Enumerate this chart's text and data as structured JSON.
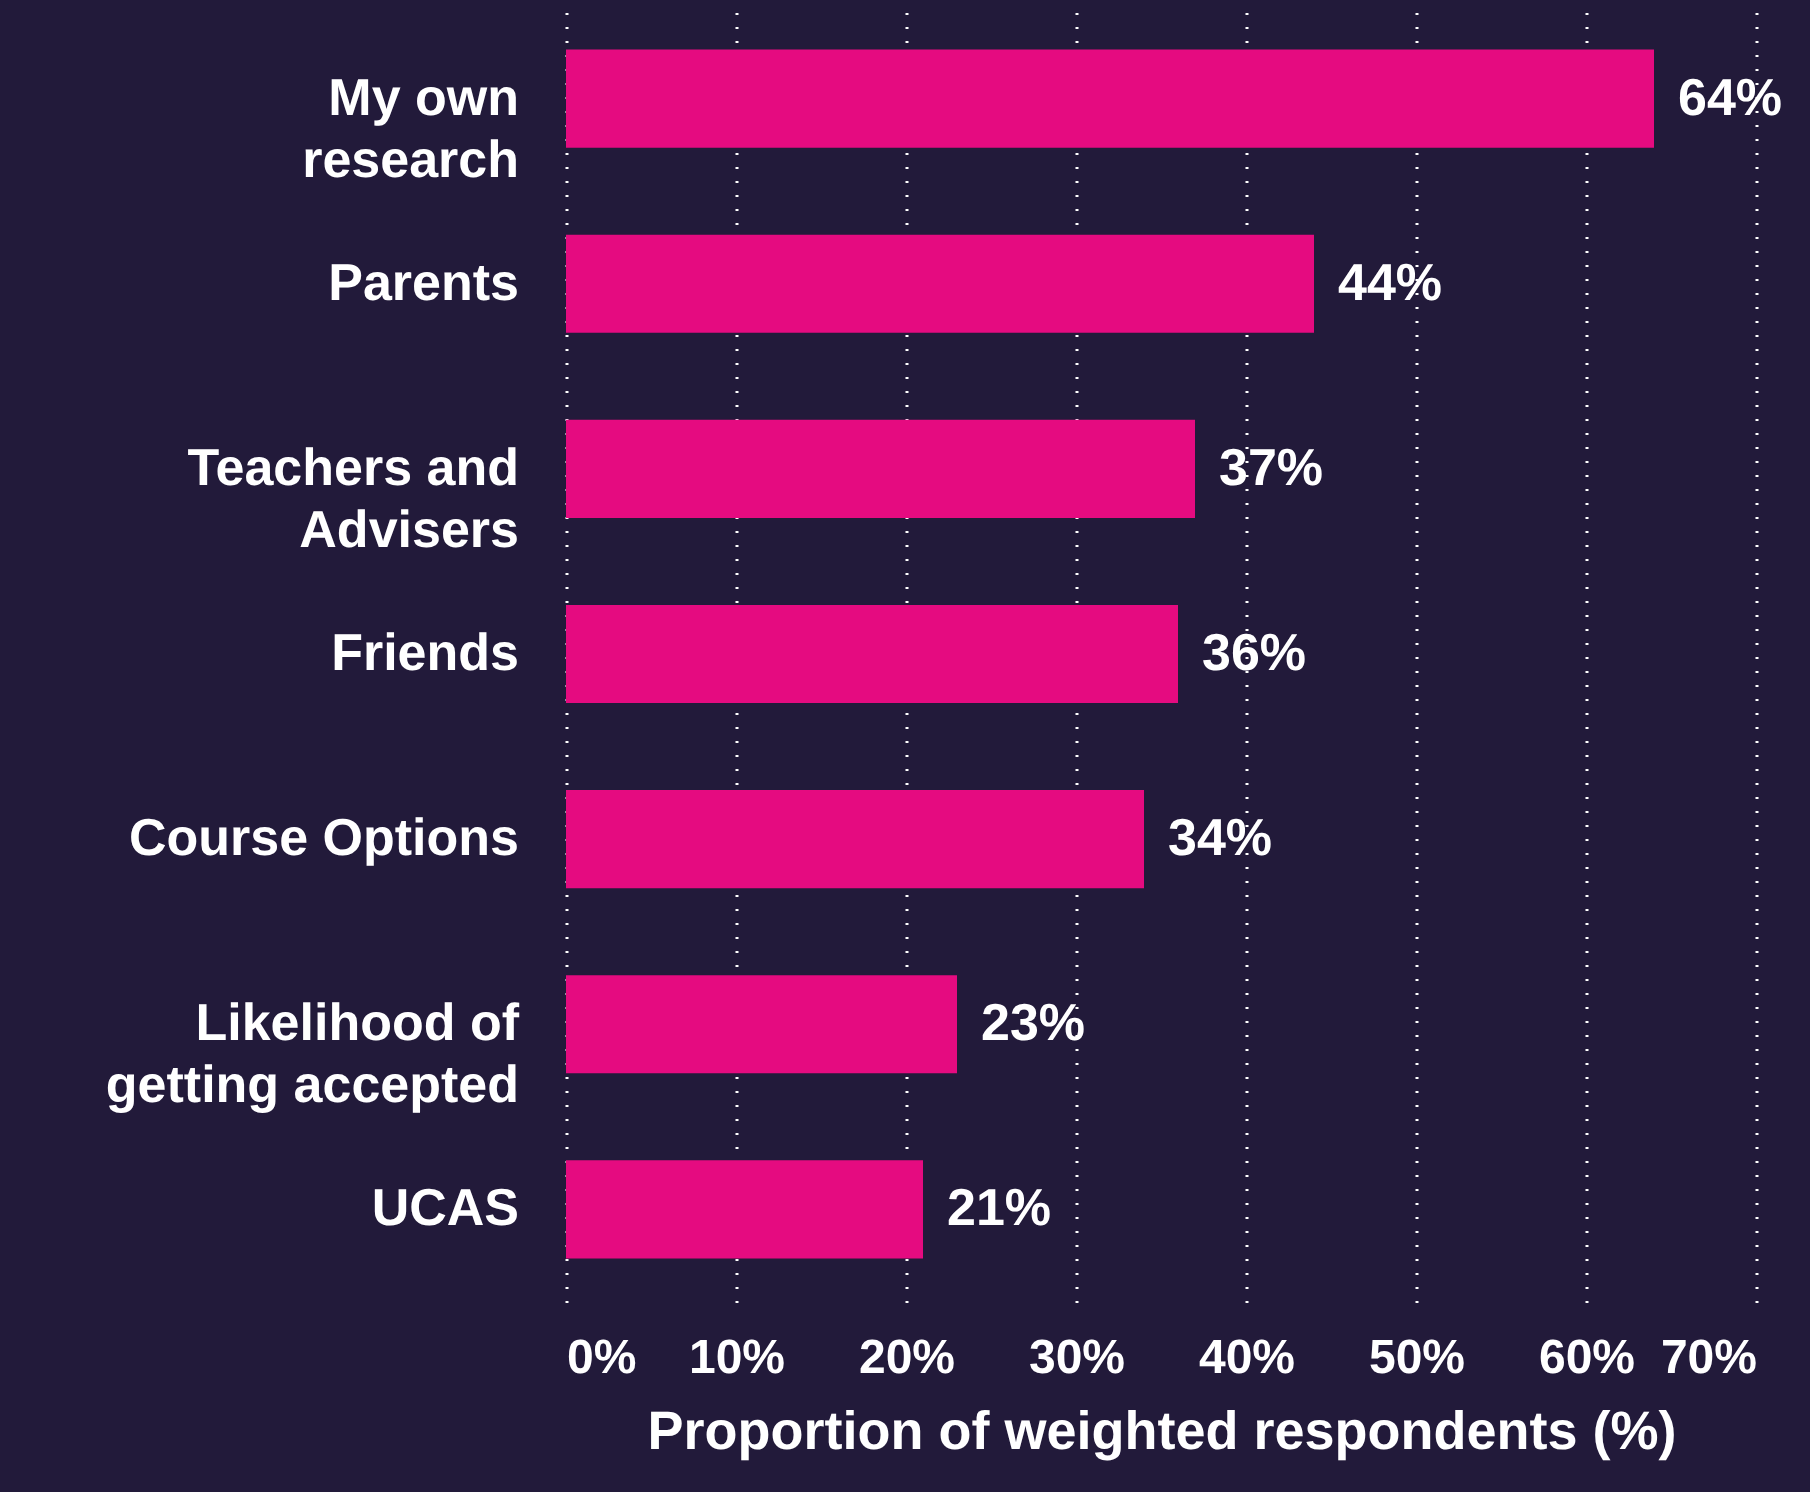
{
  "chart_data": {
    "type": "bar",
    "orientation": "horizontal",
    "categories": [
      "My own\nresearch",
      "Parents",
      "Teachers and\nAdvisers",
      "Friends",
      "Course Options",
      "Likelihood of\ngetting accepted",
      "UCAS"
    ],
    "values": [
      64,
      44,
      37,
      36,
      34,
      23,
      21
    ],
    "color": "#e50b80",
    "xlabel": "Proportion of weighted respondents (%)",
    "xlim": [
      0,
      70
    ],
    "xticks": [
      {
        "value": 0,
        "label": "0%"
      },
      {
        "value": 10,
        "label": "10%"
      },
      {
        "value": 20,
        "label": "20%"
      },
      {
        "value": 30,
        "label": "30%"
      },
      {
        "value": 40,
        "label": "40%"
      },
      {
        "value": 50,
        "label": "50%"
      },
      {
        "value": 60,
        "label": "60%"
      },
      {
        "value": 70,
        "label": "70%"
      }
    ],
    "value_labels": [
      "64%",
      "44%",
      "37%",
      "36%",
      "34%",
      "23%",
      "21%"
    ],
    "grid": "x"
  }
}
